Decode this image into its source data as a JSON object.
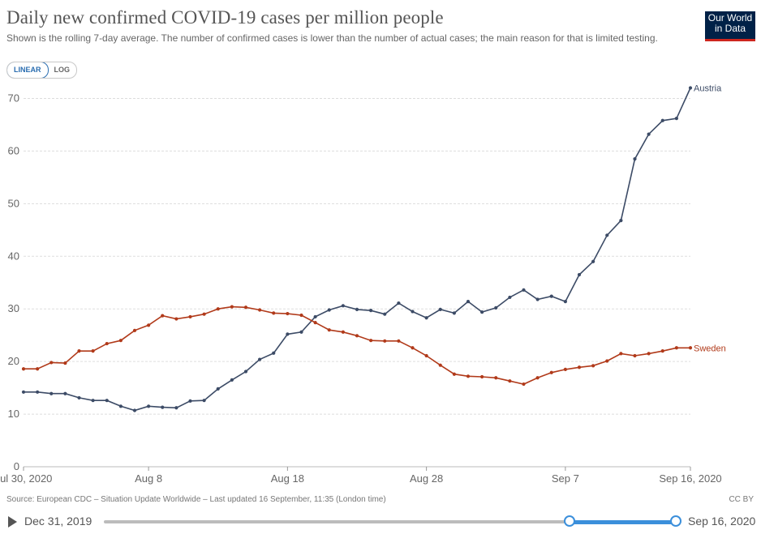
{
  "header": {
    "title": "Daily new confirmed COVID-19 cases per million people",
    "subtitle": "Shown is the rolling 7-day average. The number of confirmed cases is lower than the number of actual cases; the main reason for that is limited testing.",
    "logo_line1": "Our World",
    "logo_line2": "in Data"
  },
  "scale_toggle": {
    "linear_label": "LINEAR",
    "log_label": "LOG",
    "selected": "LINEAR"
  },
  "footer": {
    "source": "Source: European CDC – Situation Update Worldwide – Last updated 16 September, 11:35 (London time)",
    "license": "CC BY"
  },
  "timeline": {
    "start_label": "Dec 31, 2019",
    "end_label": "Sep 16, 2020",
    "selection_start_fraction": 0.814,
    "selection_end_fraction": 1.0
  },
  "colors": {
    "austria": "#3c4b66",
    "sweden": "#b13a1a",
    "grid": "#dddddd",
    "accent": "#3b8fdb"
  },
  "chart_data": {
    "type": "line",
    "title": "Daily new confirmed COVID-19 cases per million people",
    "x_start_date": "2020-07-30",
    "x_tick_labels": [
      "Jul 30, 2020",
      "Aug 8",
      "Aug 18",
      "Aug 28",
      "Sep 7",
      "Sep 16, 2020"
    ],
    "x_tick_days": [
      0,
      9,
      19,
      29,
      39,
      48
    ],
    "y_ticks": [
      0,
      10,
      20,
      30,
      40,
      50,
      60,
      70
    ],
    "ylim": [
      0,
      72
    ],
    "grid": true,
    "legend": "inline-right",
    "series": [
      {
        "name": "Austria",
        "color": "#3c4b66",
        "values": [
          14.2,
          14.2,
          13.9,
          13.9,
          13.1,
          12.6,
          12.6,
          11.5,
          10.7,
          11.5,
          11.3,
          11.2,
          12.5,
          12.6,
          14.8,
          16.5,
          18.1,
          20.4,
          21.6,
          25.2,
          25.6,
          28.5,
          29.8,
          30.6,
          29.9,
          29.7,
          29.0,
          31.1,
          29.5,
          28.3,
          29.9,
          29.2,
          31.4,
          29.4,
          30.2,
          32.2,
          33.6,
          31.8,
          32.4,
          31.4,
          36.5,
          39.0,
          44.0,
          46.8,
          58.5,
          63.2,
          65.8,
          66.2,
          72.0
        ]
      },
      {
        "name": "Sweden",
        "color": "#b13a1a",
        "values": [
          18.6,
          18.6,
          19.8,
          19.7,
          22.0,
          22.0,
          23.4,
          24.0,
          25.9,
          26.9,
          28.7,
          28.1,
          28.5,
          29.0,
          30.0,
          30.4,
          30.3,
          29.8,
          29.2,
          29.1,
          28.8,
          27.4,
          26.0,
          25.6,
          24.9,
          24.0,
          23.9,
          23.9,
          22.6,
          21.1,
          19.3,
          17.6,
          17.2,
          17.1,
          16.9,
          16.3,
          15.7,
          16.9,
          17.9,
          18.5,
          18.9,
          19.2,
          20.1,
          21.5,
          21.1,
          21.5,
          22.0,
          22.6,
          22.6
        ]
      }
    ]
  }
}
